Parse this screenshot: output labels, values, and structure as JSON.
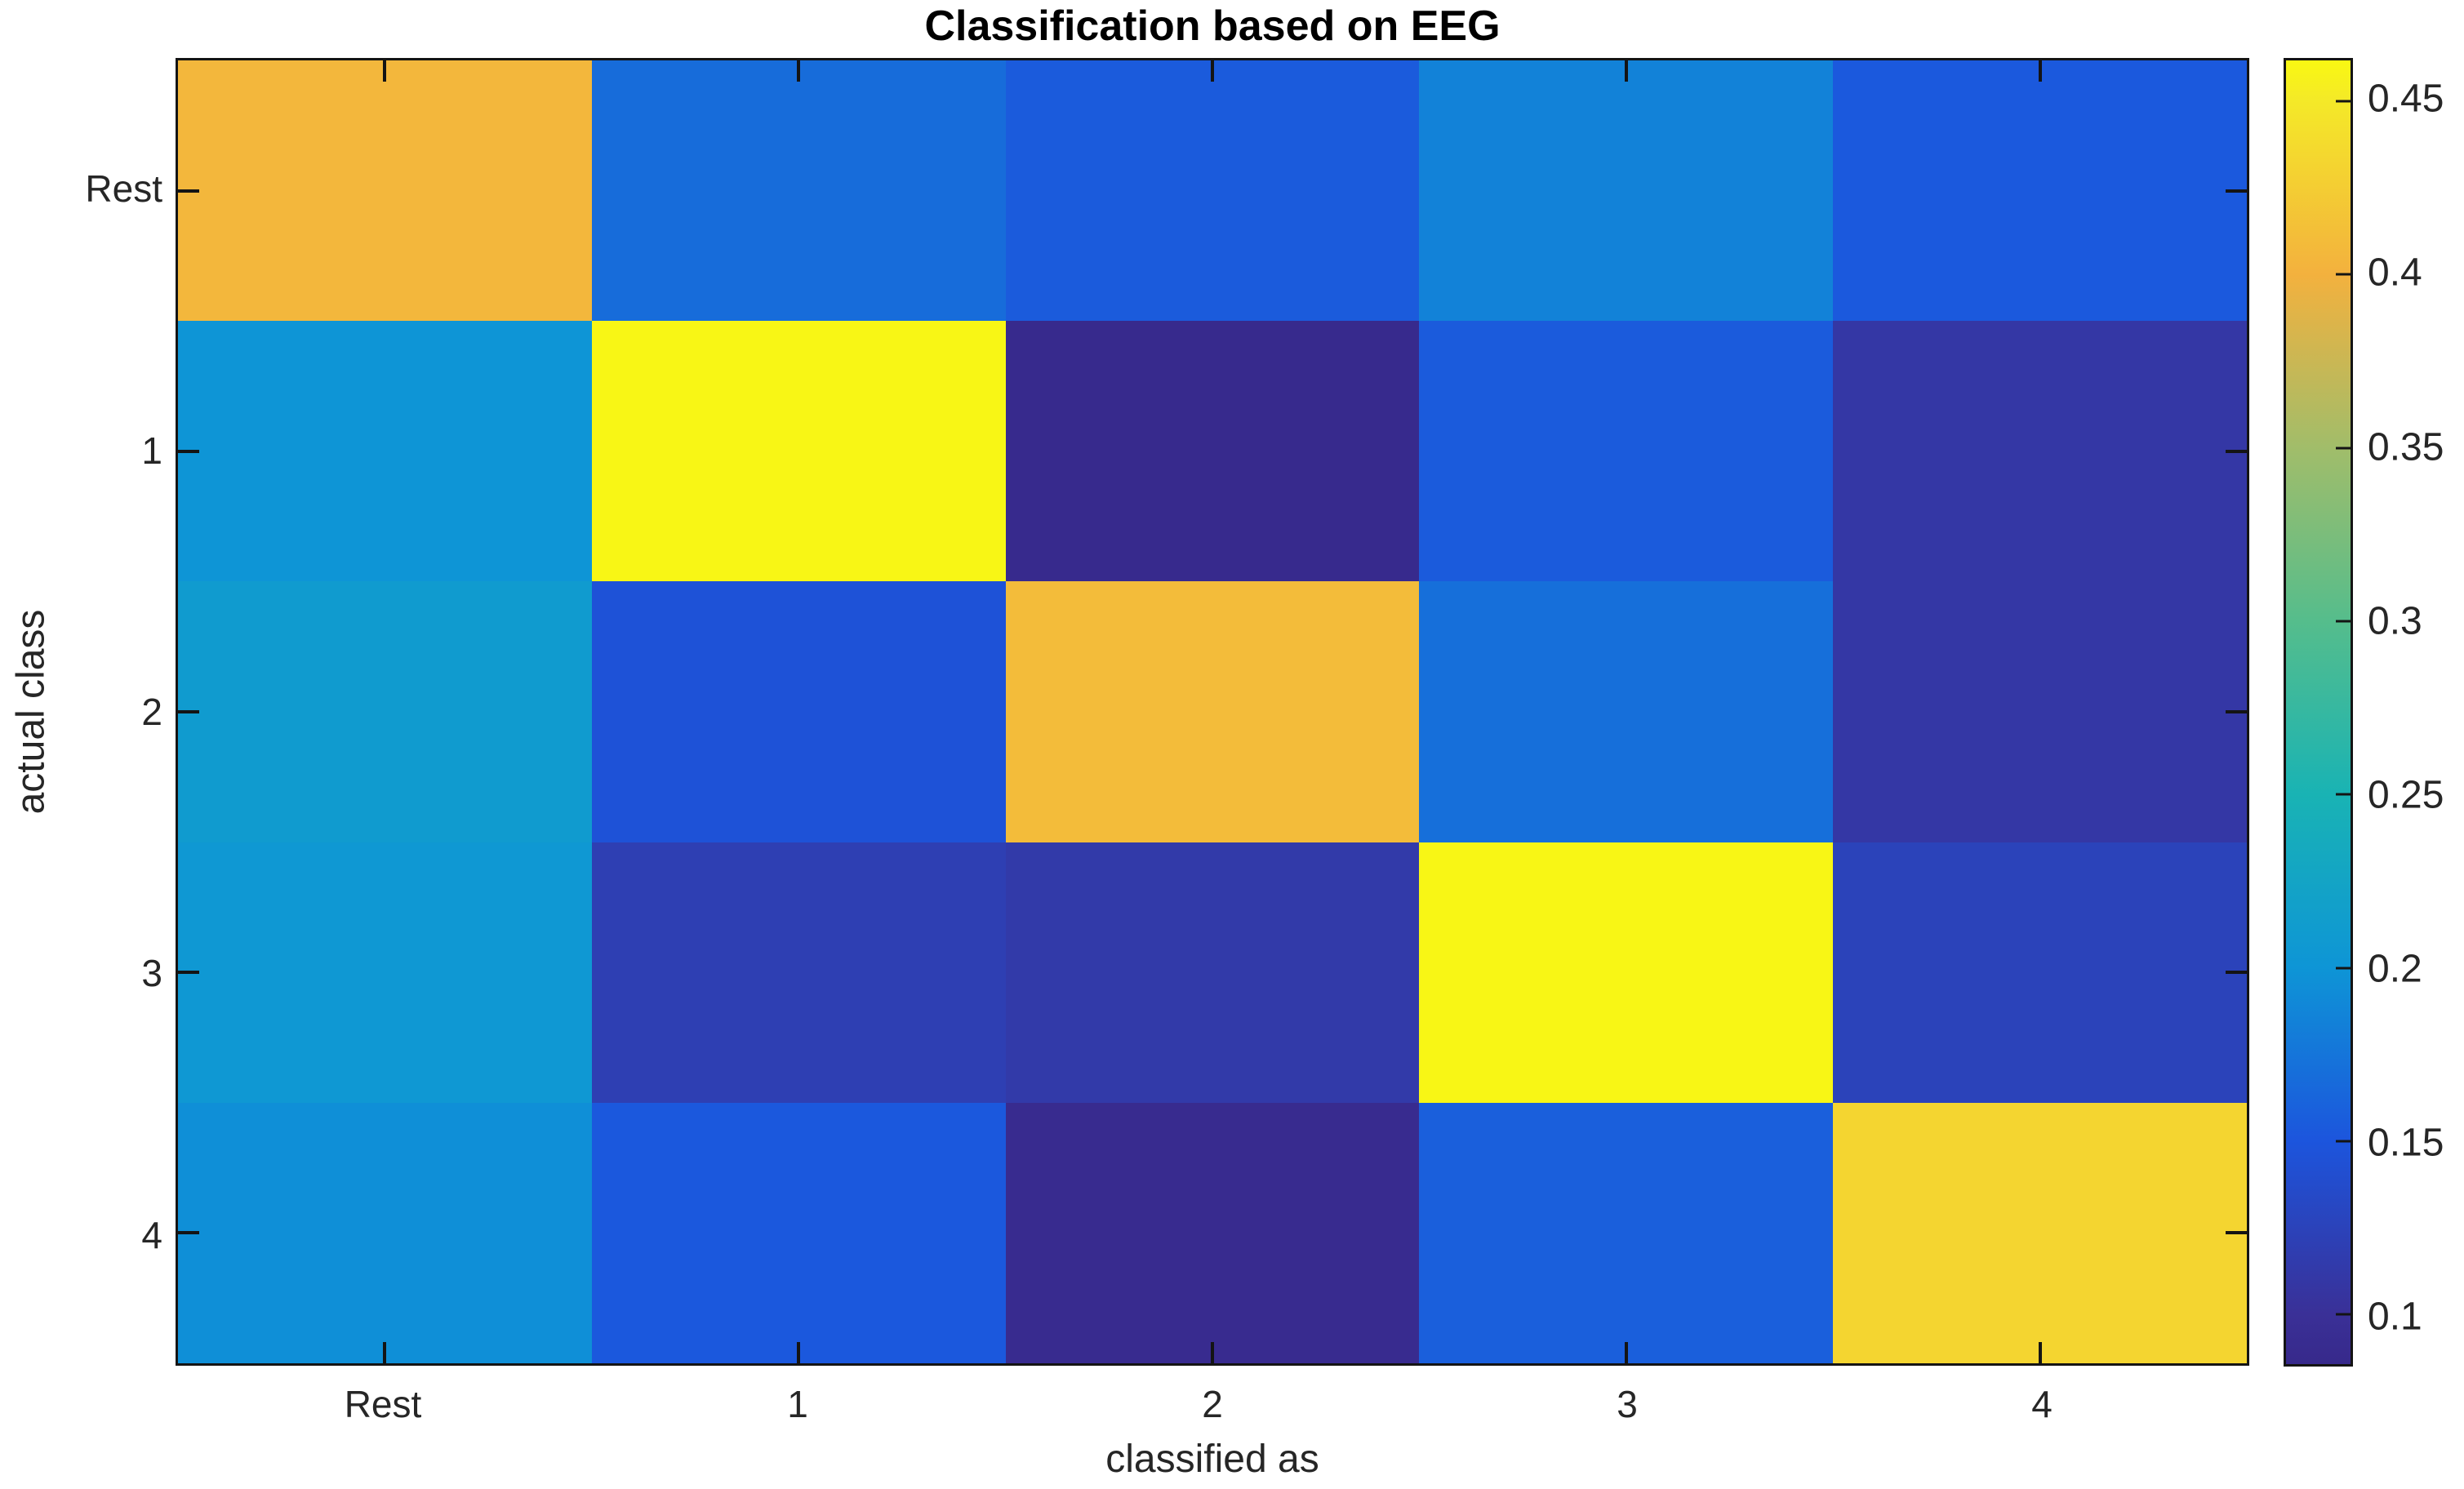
{
  "chart_data": {
    "type": "heatmap",
    "title": "Classification based on EEG",
    "xlabel": "classified as",
    "ylabel": "actual class",
    "x_categories": [
      "Rest",
      "1",
      "2",
      "3",
      "4"
    ],
    "y_categories": [
      "Rest",
      "1",
      "2",
      "3",
      "4"
    ],
    "values": [
      [
        0.405,
        0.168,
        0.155,
        0.185,
        0.153
      ],
      [
        0.2,
        0.46,
        0.088,
        0.155,
        0.11
      ],
      [
        0.21,
        0.146,
        0.41,
        0.17,
        0.11
      ],
      [
        0.205,
        0.12,
        0.113,
        0.46,
        0.125
      ],
      [
        0.195,
        0.152,
        0.09,
        0.158,
        0.432
      ]
    ],
    "colormap": "parula",
    "value_range": [
      0.0857,
      0.4618
    ],
    "colorbar_ticks": [
      "0.1",
      "0.15",
      "0.2",
      "0.25",
      "0.3",
      "0.35",
      "0.4",
      "0.45"
    ],
    "colorbar_tick_values": [
      0.1,
      0.15,
      0.2,
      0.25,
      0.3,
      0.35,
      0.4,
      0.45
    ],
    "colorbar_position": "right",
    "grid": false
  },
  "colors": {
    "background": "#ffffff",
    "axis": "#141414",
    "tick_text": "#262626",
    "title_text": "#000000",
    "parula_anchors": [
      [
        0.0857,
        "#37298b"
      ],
      [
        0.1,
        "#3a3097"
      ],
      [
        0.15,
        "#1c55dd"
      ],
      [
        0.2,
        "#0e95d6"
      ],
      [
        0.25,
        "#19b3b4"
      ],
      [
        0.3,
        "#55bd8c"
      ],
      [
        0.35,
        "#a1bd6a"
      ],
      [
        0.4,
        "#f3b13e"
      ],
      [
        0.45,
        "#f4e928"
      ],
      [
        0.4618,
        "#f9f812"
      ]
    ]
  }
}
